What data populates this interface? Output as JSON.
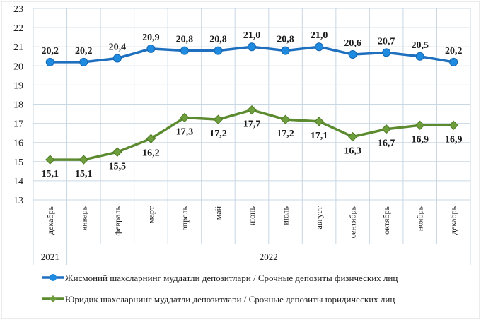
{
  "chart_data": {
    "type": "line",
    "categories": [
      "декабрь",
      "январь",
      "февраль",
      "март",
      "апрель",
      "май",
      "июнь",
      "июль",
      "август",
      "сентябрь",
      "октябрь",
      "ноябрь",
      "декабрь"
    ],
    "year_groups": [
      {
        "label": "2021",
        "span": 1
      },
      {
        "label": "2022",
        "span": 12
      }
    ],
    "ylim": [
      13,
      23
    ],
    "yticks": [
      13,
      14,
      15,
      16,
      17,
      18,
      19,
      20,
      21,
      22,
      23
    ],
    "grid": true,
    "legend_position": "bottom",
    "series": [
      {
        "name": "Жисмоний шахсларнинг  муддатли  депозитлари / Срочные депозиты  физических  лиц",
        "values": [
          20.2,
          20.2,
          20.4,
          20.9,
          20.8,
          20.8,
          21.0,
          20.8,
          21.0,
          20.6,
          20.7,
          20.5,
          20.2
        ],
        "labels": [
          "20,2",
          "20,2",
          "20,4",
          "20,9",
          "20,8",
          "20,8",
          "21,0",
          "20,8",
          "21,0",
          "20,6",
          "20,7",
          "20,5",
          "20,2"
        ],
        "color": "#1f6fbf",
        "marker_color": "#1e8be0",
        "marker": "circle",
        "label_position": "above"
      },
      {
        "name": "Юридик шахсларнинг  муддатли  депозитлари / Срочные депозиты юридических  лиц",
        "values": [
          15.1,
          15.1,
          15.5,
          16.2,
          17.3,
          17.2,
          17.7,
          17.2,
          17.1,
          16.3,
          16.7,
          16.9,
          16.9
        ],
        "labels": [
          "15,1",
          "15,1",
          "15,5",
          "16,2",
          "17,3",
          "17,2",
          "17,7",
          "17,2",
          "17,1",
          "16,3",
          "16,7",
          "16,9",
          "16,9"
        ],
        "color": "#5b8a2f",
        "marker_color": "#6e9e3c",
        "marker": "diamond",
        "label_position": "below"
      }
    ]
  }
}
